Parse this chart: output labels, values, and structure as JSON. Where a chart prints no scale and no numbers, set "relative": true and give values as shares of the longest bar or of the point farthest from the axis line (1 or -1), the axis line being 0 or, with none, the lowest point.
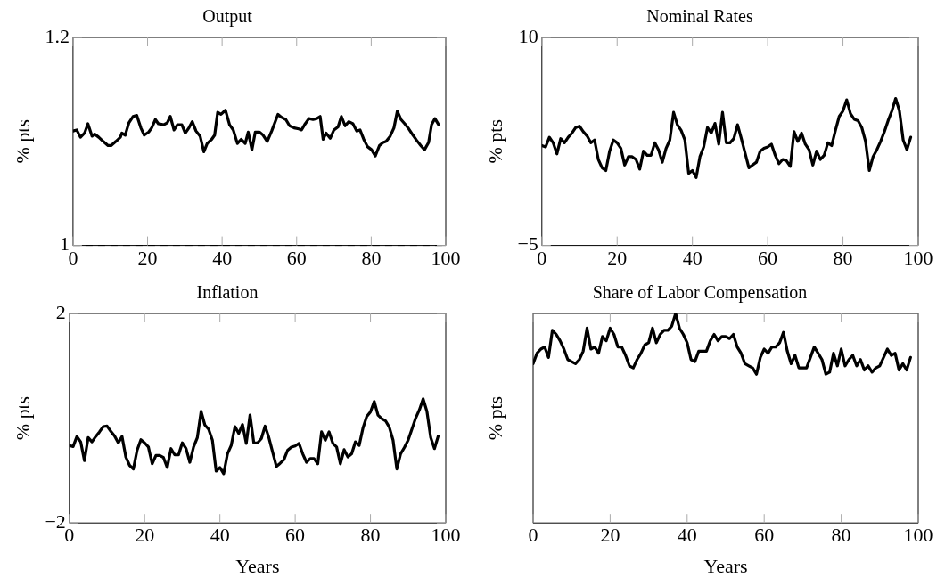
{
  "chart_data": [
    {
      "type": "line",
      "title": "Output",
      "ylabel": "% pts",
      "xlim": [
        0,
        100
      ],
      "xticks": [
        0,
        20,
        40,
        60,
        80,
        100
      ],
      "ylim": [
        1,
        1.2
      ],
      "yticks": [
        1,
        1.2
      ],
      "grid": false,
      "legend": false,
      "marker": "none",
      "line_style": "solid",
      "ref_lines": [
        {
          "axis": "y",
          "value": 1,
          "color": "#000000",
          "line_style": "dashed"
        }
      ],
      "x": [
        0,
        1.0,
        2.0,
        3.1,
        4.0,
        5.1,
        5.8,
        6.9,
        8.1,
        9.4,
        10.2,
        11.5,
        12.7,
        13.1,
        14.0,
        15.0,
        16.1,
        17.1,
        18.2,
        19.1,
        20.3,
        21.1,
        22.1,
        22.9,
        24.3,
        25.3,
        26.1,
        27.1,
        28.0,
        29.2,
        30.1,
        31.1,
        32.0,
        33.0,
        34.1,
        35.1,
        36.0,
        37.2,
        38.0,
        38.8,
        39.7,
        40.9,
        42.0,
        43.0,
        44.1,
        45.1,
        46.2,
        47.0,
        48.0,
        48.9,
        50.0,
        51.0,
        52.1,
        53.3,
        55.0,
        56.0,
        57.1,
        58.1,
        59.3,
        60.6,
        61.3,
        62.3,
        63.3,
        64.4,
        65.4,
        66.3,
        67.1,
        67.9,
        69.0,
        70.0,
        71.1,
        72.0,
        73.0,
        74.0,
        75.1,
        76.1,
        77.0,
        78.0,
        79.0,
        80.1,
        81.1,
        82.2,
        83.2,
        84.0,
        85.1,
        86.1,
        87.0,
        88.0,
        89.0,
        90.1,
        91.2,
        92.2,
        93.3,
        94.3,
        95.4,
        96.2,
        97.1,
        98.1
      ],
      "series": [
        {
          "color": "#000000",
          "values": [
            1.11,
            1.111,
            1.104,
            1.108,
            1.117,
            1.105,
            1.107,
            1.104,
            1.1,
            1.096,
            1.096,
            1.1,
            1.104,
            1.108,
            1.106,
            1.118,
            1.124,
            1.125,
            1.113,
            1.106,
            1.109,
            1.113,
            1.121,
            1.117,
            1.116,
            1.118,
            1.124,
            1.111,
            1.116,
            1.116,
            1.108,
            1.113,
            1.119,
            1.11,
            1.105,
            1.09,
            1.098,
            1.102,
            1.106,
            1.128,
            1.126,
            1.13,
            1.116,
            1.111,
            1.098,
            1.102,
            1.098,
            1.109,
            1.092,
            1.109,
            1.109,
            1.106,
            1.1,
            1.11,
            1.126,
            1.123,
            1.121,
            1.115,
            1.113,
            1.112,
            1.111,
            1.117,
            1.122,
            1.121,
            1.122,
            1.124,
            1.102,
            1.108,
            1.103,
            1.111,
            1.114,
            1.124,
            1.115,
            1.119,
            1.117,
            1.11,
            1.111,
            1.102,
            1.095,
            1.092,
            1.086,
            1.096,
            1.099,
            1.1,
            1.105,
            1.113,
            1.129,
            1.121,
            1.117,
            1.112,
            1.106,
            1.101,
            1.096,
            1.092,
            1.099,
            1.116,
            1.122,
            1.116
          ]
        }
      ]
    },
    {
      "type": "line",
      "title": "Nominal Rates",
      "ylabel": "% pts",
      "xlim": [
        0,
        100
      ],
      "xticks": [
        0,
        20,
        40,
        60,
        80,
        100
      ],
      "ylim": [
        -5,
        10
      ],
      "yticks": [
        {
          "value": -5,
          "label": "−5"
        },
        10
      ],
      "grid": false,
      "legend": false,
      "marker": "none",
      "line_style": "solid",
      "x": [
        0,
        1,
        2,
        3,
        4,
        5,
        6,
        7,
        8,
        9,
        10,
        11,
        12,
        13,
        14,
        15,
        16,
        17,
        18,
        19,
        20,
        21,
        22,
        23,
        24,
        25,
        26,
        27,
        28,
        29,
        30,
        31,
        32,
        33,
        34,
        35,
        36,
        37,
        38,
        39,
        40,
        41,
        42,
        43,
        44,
        45,
        46,
        47,
        48,
        49,
        50,
        51,
        52,
        53,
        55,
        56,
        57,
        58,
        59,
        60,
        61,
        62,
        63,
        64,
        65,
        66,
        67,
        68,
        69,
        70,
        71,
        72,
        73,
        74,
        75,
        76,
        77,
        78,
        79,
        80,
        81,
        82,
        83,
        84,
        85,
        86,
        87,
        88,
        89,
        90,
        91,
        92,
        93,
        94,
        95,
        96,
        97,
        98
      ],
      "series": [
        {
          "color": "#000000",
          "values": [
            2.2,
            2.1,
            2.8,
            2.4,
            1.6,
            2.7,
            2.4,
            2.8,
            3.1,
            3.5,
            3.6,
            3.2,
            2.9,
            2.4,
            2.6,
            1.2,
            0.6,
            0.4,
            1.8,
            2.6,
            2.4,
            2.0,
            0.8,
            1.4,
            1.4,
            1.2,
            0.5,
            1.8,
            1.5,
            1.5,
            2.4,
            1.9,
            1.0,
            2.0,
            2.6,
            4.6,
            3.7,
            3.3,
            2.6,
            0.2,
            0.4,
            -0.1,
            1.4,
            2.1,
            3.5,
            3.1,
            3.8,
            2.3,
            4.6,
            2.4,
            2.4,
            2.7,
            3.7,
            2.7,
            0.6,
            0.8,
            1.0,
            1.8,
            2.0,
            2.1,
            2.3,
            1.5,
            0.9,
            1.2,
            1.1,
            0.7,
            3.2,
            2.5,
            3.1,
            2.3,
            1.9,
            0.8,
            1.8,
            1.2,
            1.5,
            2.4,
            2.2,
            3.3,
            4.3,
            4.7,
            5.5,
            4.5,
            4.1,
            4.0,
            3.5,
            2.5,
            0.4,
            1.4,
            1.9,
            2.5,
            3.2,
            4.0,
            4.7,
            5.6,
            4.7,
            2.6,
            1.9,
            2.8
          ]
        }
      ]
    },
    {
      "type": "line",
      "title": "Inflation",
      "xlabel": "Years",
      "ylabel": "% pts",
      "xlim": [
        0,
        100
      ],
      "xticks": [
        0,
        20,
        40,
        60,
        80,
        100
      ],
      "ylim": [
        -2,
        2
      ],
      "yticks": [
        {
          "value": -2,
          "label": "−2"
        },
        2
      ],
      "grid": false,
      "legend": false,
      "marker": "none",
      "line_style": "solid",
      "x": [
        0,
        1,
        2,
        3,
        4,
        5,
        6,
        7,
        8,
        9,
        10,
        11,
        12,
        13,
        14,
        15,
        16,
        17,
        18,
        19,
        20,
        21,
        22,
        23,
        24,
        25,
        26,
        27,
        28,
        29,
        30,
        31,
        32,
        33,
        34,
        35,
        36,
        37,
        38,
        39,
        40,
        41,
        42,
        43,
        44,
        45,
        46,
        47,
        48,
        49,
        50,
        51,
        52,
        53,
        55,
        56,
        57,
        58,
        59,
        60,
        61,
        62,
        63,
        64,
        65,
        66,
        67,
        68,
        69,
        70,
        71,
        72,
        73,
        74,
        75,
        76,
        77,
        78,
        79,
        80,
        81,
        82,
        83,
        84,
        85,
        86,
        87,
        88,
        89,
        90,
        91,
        92,
        93,
        94,
        95,
        96,
        97,
        98
      ],
      "series": [
        {
          "color": "#000000",
          "values": [
            -0.52,
            -0.54,
            -0.35,
            -0.45,
            -0.81,
            -0.37,
            -0.45,
            -0.35,
            -0.26,
            -0.16,
            -0.15,
            -0.25,
            -0.34,
            -0.47,
            -0.35,
            -0.74,
            -0.9,
            -0.97,
            -0.61,
            -0.41,
            -0.47,
            -0.55,
            -0.87,
            -0.71,
            -0.71,
            -0.75,
            -0.94,
            -0.58,
            -0.7,
            -0.7,
            -0.47,
            -0.58,
            -0.84,
            -0.55,
            -0.37,
            0.13,
            -0.13,
            -0.21,
            -0.42,
            -1.01,
            -0.94,
            -1.06,
            -0.68,
            -0.52,
            -0.16,
            -0.29,
            -0.12,
            -0.48,
            0.06,
            -0.47,
            -0.47,
            -0.39,
            -0.15,
            -0.37,
            -0.92,
            -0.86,
            -0.79,
            -0.61,
            -0.55,
            -0.53,
            -0.48,
            -0.68,
            -0.84,
            -0.77,
            -0.77,
            -0.87,
            -0.26,
            -0.42,
            -0.26,
            -0.48,
            -0.55,
            -0.87,
            -0.6,
            -0.74,
            -0.68,
            -0.45,
            -0.52,
            -0.19,
            0.03,
            0.12,
            0.32,
            0.06,
            -0.01,
            -0.05,
            -0.17,
            -0.42,
            -0.97,
            -0.68,
            -0.56,
            -0.42,
            -0.21,
            0.0,
            0.16,
            0.37,
            0.13,
            -0.37,
            -0.58,
            -0.34
          ]
        }
      ]
    },
    {
      "type": "line",
      "title": "Share of Labor Compensation",
      "xlabel": "Years",
      "ylabel": "% pts",
      "xlim": [
        0,
        100
      ],
      "xticks": [
        0,
        20,
        40,
        60,
        80,
        100
      ],
      "relative": true,
      "grid": false,
      "legend": false,
      "marker": "none",
      "line_style": "solid",
      "x": [
        0,
        1,
        2,
        3,
        4,
        5,
        6,
        7,
        8,
        9,
        10,
        11,
        12,
        13,
        14,
        15,
        16,
        17,
        18,
        19,
        20,
        21,
        22,
        23,
        24,
        25,
        26,
        27,
        28,
        29,
        30,
        31,
        32,
        33,
        34,
        35,
        36,
        37,
        38,
        39,
        40,
        41,
        42,
        43,
        44,
        45,
        46,
        47,
        48,
        49,
        50,
        51,
        52,
        53,
        54,
        55,
        56,
        57,
        58,
        59,
        60,
        61,
        62,
        63,
        64,
        65,
        66,
        67,
        68,
        69,
        70,
        71,
        72,
        73,
        74,
        75,
        76,
        77,
        78,
        79,
        80,
        81,
        82,
        83,
        84,
        85,
        86,
        87,
        88,
        89,
        90,
        91,
        92,
        93,
        94,
        95,
        96,
        97,
        98
      ],
      "series": [
        {
          "color": "#000000",
          "values": [
            0.76,
            0.81,
            0.83,
            0.84,
            0.79,
            0.92,
            0.9,
            0.87,
            0.83,
            0.78,
            0.77,
            0.76,
            0.78,
            0.82,
            0.93,
            0.83,
            0.84,
            0.81,
            0.89,
            0.87,
            0.93,
            0.9,
            0.84,
            0.84,
            0.8,
            0.75,
            0.74,
            0.78,
            0.81,
            0.85,
            0.86,
            0.93,
            0.86,
            0.9,
            0.92,
            0.92,
            0.94,
            1.0,
            0.93,
            0.9,
            0.86,
            0.78,
            0.77,
            0.82,
            0.82,
            0.82,
            0.87,
            0.9,
            0.87,
            0.89,
            0.89,
            0.88,
            0.9,
            0.84,
            0.81,
            0.76,
            0.75,
            0.74,
            0.71,
            0.79,
            0.83,
            0.81,
            0.84,
            0.84,
            0.86,
            0.91,
            0.82,
            0.76,
            0.8,
            0.74,
            0.74,
            0.74,
            0.79,
            0.84,
            0.81,
            0.78,
            0.71,
            0.72,
            0.81,
            0.75,
            0.83,
            0.75,
            0.78,
            0.8,
            0.75,
            0.78,
            0.73,
            0.75,
            0.72,
            0.74,
            0.75,
            0.79,
            0.83,
            0.8,
            0.81,
            0.73,
            0.76,
            0.73,
            0.79
          ]
        }
      ]
    }
  ]
}
